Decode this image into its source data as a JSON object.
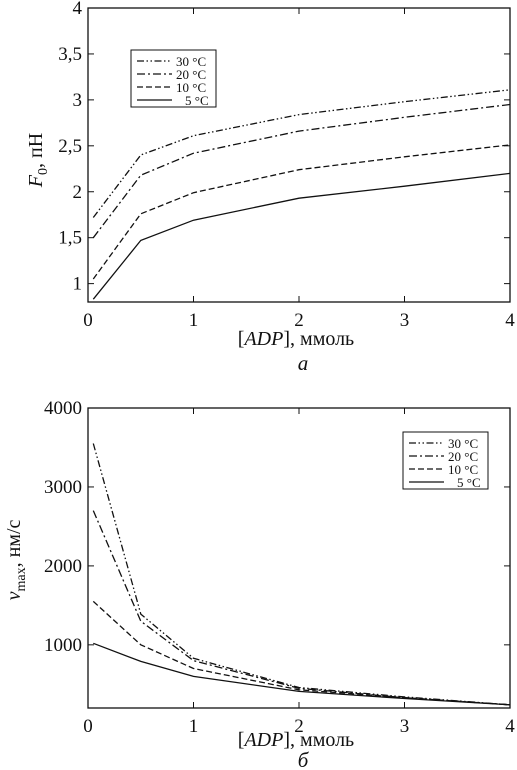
{
  "chart_data": [
    {
      "type": "line",
      "panel_label": "а",
      "xlabel_var": "ADP",
      "xlabel_unit": ", ммоль",
      "ylabel_var": "F",
      "ylabel_sub": "0",
      "ylabel_unit": ", пН",
      "xlim": [
        0,
        4
      ],
      "ylim": [
        0.8,
        4
      ],
      "xticks": [
        0,
        1,
        2,
        3,
        4
      ],
      "xtick_labels": [
        "0",
        "1",
        "2",
        "3",
        "4"
      ],
      "yticks": [
        1,
        1.5,
        2,
        2.5,
        3,
        3.5,
        4
      ],
      "ytick_labels": [
        "1",
        "1,5",
        "2",
        "2,5",
        "3",
        "3,5",
        "4"
      ],
      "grid": false,
      "legend_position": "upper-left",
      "series": [
        {
          "name": "30 °C",
          "dash": "dash-dot-dot",
          "x": [
            0.05,
            0.5,
            1,
            2,
            3,
            4
          ],
          "y": [
            1.72,
            2.4,
            2.61,
            2.84,
            2.98,
            3.11
          ]
        },
        {
          "name": "20 °C",
          "dash": "dash-dot",
          "x": [
            0.05,
            0.5,
            1,
            2,
            3,
            4
          ],
          "y": [
            1.5,
            2.18,
            2.42,
            2.66,
            2.81,
            2.95
          ]
        },
        {
          "name": "10 °C",
          "dash": "dashed",
          "x": [
            0.05,
            0.5,
            1,
            2,
            3,
            4
          ],
          "y": [
            1.05,
            1.76,
            1.99,
            2.24,
            2.38,
            2.51
          ]
        },
        {
          "name": "5 °C",
          "dash": "solid",
          "x": [
            0.05,
            0.5,
            1,
            2,
            3,
            4
          ],
          "y": [
            0.83,
            1.47,
            1.69,
            1.93,
            2.06,
            2.2
          ]
        }
      ]
    },
    {
      "type": "line",
      "panel_label": "б",
      "xlabel_var": "ADP",
      "xlabel_unit": ", ммоль",
      "ylabel_var": "v",
      "ylabel_sub": "max",
      "ylabel_unit": ", нм/с",
      "xlim": [
        0,
        4
      ],
      "ylim": [
        200,
        4000
      ],
      "xticks": [
        0,
        1,
        2,
        3,
        4
      ],
      "xtick_labels": [
        "0",
        "1",
        "2",
        "3",
        "4"
      ],
      "yticks": [
        1000,
        2000,
        3000,
        4000
      ],
      "ytick_labels": [
        "1000",
        "2000",
        "3000",
        "4000"
      ],
      "grid": false,
      "legend_position": "upper-right",
      "series": [
        {
          "name": "30 °C",
          "dash": "dash-dot-dot",
          "x": [
            0.05,
            0.5,
            1,
            2,
            3,
            4
          ],
          "y": [
            3550,
            1390,
            830,
            460,
            340,
            240
          ]
        },
        {
          "name": "20 °C",
          "dash": "dash-dot",
          "x": [
            0.05,
            0.5,
            1,
            2,
            3,
            4
          ],
          "y": [
            2700,
            1300,
            800,
            450,
            330,
            240
          ]
        },
        {
          "name": "10 °C",
          "dash": "dashed",
          "x": [
            0.05,
            0.5,
            1,
            2,
            3,
            4
          ],
          "y": [
            1550,
            1000,
            700,
            430,
            330,
            240
          ]
        },
        {
          "name": "5 °C",
          "dash": "solid",
          "x": [
            0.05,
            0.5,
            1,
            2,
            3,
            4
          ],
          "y": [
            1020,
            790,
            600,
            410,
            320,
            240
          ]
        }
      ]
    }
  ]
}
